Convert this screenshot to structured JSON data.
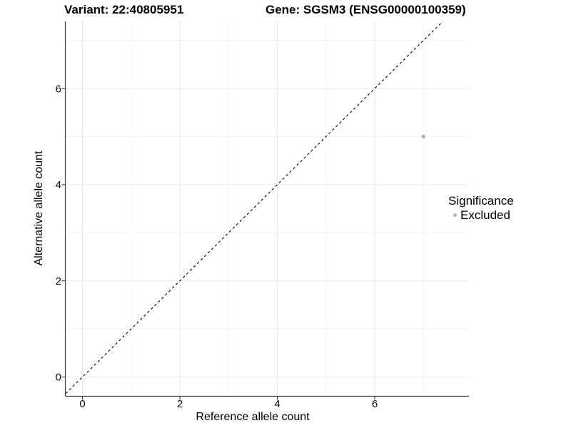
{
  "chart_data": {
    "type": "scatter",
    "titles": {
      "left": "Variant: 22:40805951",
      "right": "Gene: SGSM3 (ENSG00000100359)"
    },
    "xlabel": "Reference allele count",
    "ylabel": "Alternative allele count",
    "x_ticks": [
      0,
      2,
      4,
      6
    ],
    "y_ticks": [
      0,
      2,
      4,
      6
    ],
    "x_minor_ticks": [
      1,
      3,
      5,
      7
    ],
    "y_minor_ticks": [
      1,
      3,
      5,
      7
    ],
    "xlim": [
      -0.35,
      7.95
    ],
    "ylim": [
      -0.4,
      7.4
    ],
    "grid": {
      "show": true,
      "major_color": "#e7e7e7",
      "minor_color": "#f3f3f3"
    },
    "reference_line": {
      "kind": "identity",
      "style": "dashed",
      "color": "#000000"
    },
    "series": [
      {
        "name": "Excluded",
        "color": "#b4b4b4",
        "points": [
          {
            "x": 7,
            "y": 5
          }
        ]
      }
    ],
    "legend": {
      "title": "Significance",
      "position": "right",
      "entries": [
        {
          "label": "Excluded",
          "color": "#b4b4b4"
        }
      ]
    },
    "axis": {
      "line_color": "#3c3c3c",
      "tick_color": "#333333"
    }
  }
}
